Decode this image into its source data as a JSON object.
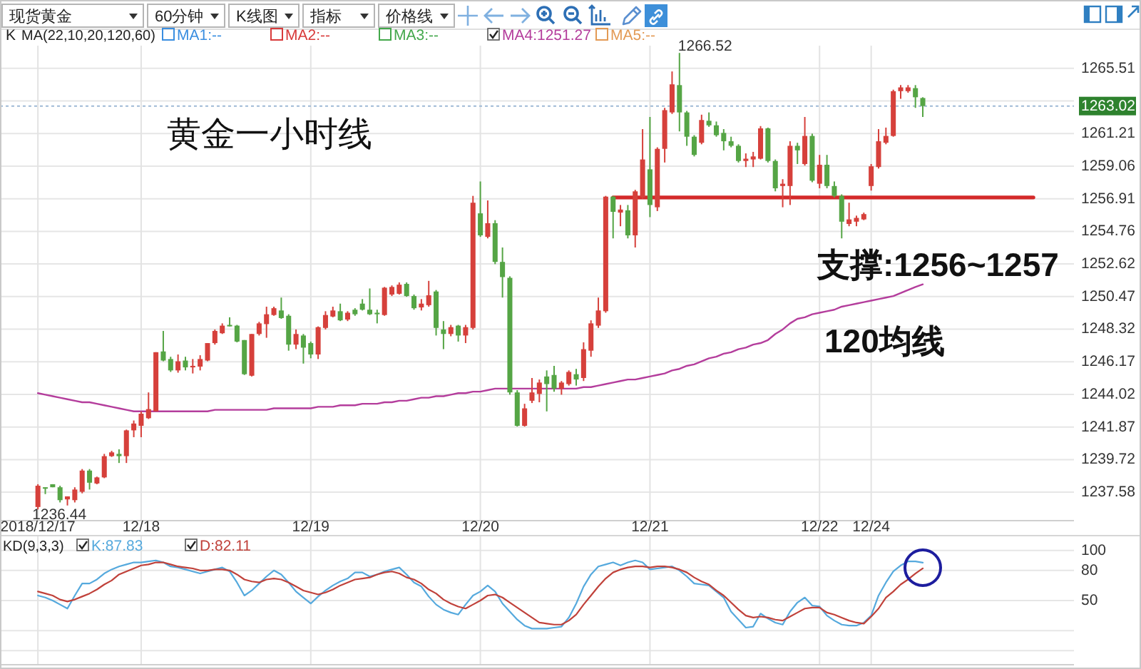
{
  "chart_data": [
    {
      "type": "candlestick",
      "title": "黄金一小时线",
      "categories": [
        "2018/12/17",
        null,
        null,
        null,
        null,
        null,
        null,
        null,
        null,
        null,
        null,
        null,
        null,
        null,
        "12/18",
        null,
        null,
        null,
        null,
        null,
        null,
        null,
        null,
        null,
        null,
        null,
        null,
        null,
        null,
        null,
        null,
        null,
        null,
        null,
        null,
        null,
        null,
        "12/19",
        null,
        null,
        null,
        null,
        null,
        null,
        null,
        null,
        null,
        null,
        null,
        null,
        null,
        null,
        null,
        null,
        null,
        null,
        null,
        null,
        null,
        null,
        "12/20",
        null,
        null,
        null,
        null,
        null,
        null,
        null,
        null,
        null,
        null,
        null,
        null,
        null,
        null,
        null,
        null,
        null,
        null,
        null,
        null,
        null,
        null,
        "12/21",
        null,
        null,
        null,
        null,
        null,
        null,
        null,
        null,
        null,
        null,
        null,
        null,
        null,
        null,
        null,
        null,
        null,
        null,
        null,
        null,
        null,
        null,
        "12/22",
        null,
        null,
        null,
        null,
        null,
        null,
        "12/24",
        null,
        null,
        null,
        null,
        null,
        null,
        null,
        null,
        null,
        null,
        null,
        null,
        null,
        null,
        null,
        null,
        null,
        null,
        null,
        null,
        null,
        null,
        null,
        null,
        null,
        null,
        null
      ],
      "ohlc": [
        [
          1236.6,
          1238.1,
          1236.44,
          1238.0
        ],
        [
          1237.9,
          1237.9,
          1237.45,
          1237.85
        ],
        [
          1238.1,
          1238.1,
          1237.9,
          1237.9
        ],
        [
          1237.9,
          1238.0,
          1236.9,
          1237.05
        ],
        [
          1237.1,
          1237.3,
          1236.7,
          1237.3
        ],
        [
          1237.05,
          1237.9,
          1236.9,
          1237.75
        ],
        [
          1237.6,
          1239.1,
          1237.5,
          1239.0
        ],
        [
          1239.0,
          1239.1,
          1237.75,
          1238.2
        ],
        [
          1238.15,
          1238.6,
          1238.1,
          1238.55
        ],
        [
          1238.55,
          1240.1,
          1238.5,
          1239.95
        ],
        [
          1239.95,
          1240.3,
          1239.9,
          1240.2
        ],
        [
          1240.1,
          1240.4,
          1239.5,
          1239.95
        ],
        [
          1239.95,
          1241.7,
          1239.5,
          1241.65
        ],
        [
          1241.65,
          1242.3,
          1241.2,
          1242.1
        ],
        [
          1241.95,
          1242.9,
          1241.2,
          1242.75
        ],
        [
          1242.45,
          1244.15,
          1242.4,
          1243.05
        ],
        [
          1242.9,
          1246.8,
          1242.9,
          1246.8
        ],
        [
          1246.85,
          1248.2,
          1246.2,
          1246.25
        ],
        [
          1246.35,
          1246.5,
          1245.5,
          1245.6
        ],
        [
          1245.6,
          1246.65,
          1245.45,
          1246.2
        ],
        [
          1246.25,
          1246.5,
          1245.6,
          1245.8
        ],
        [
          1245.8,
          1246.35,
          1245.4,
          1245.9
        ],
        [
          1245.85,
          1246.6,
          1245.6,
          1246.35
        ],
        [
          1246.25,
          1247.4,
          1246.2,
          1247.4
        ],
        [
          1247.4,
          1248.3,
          1247.3,
          1248.2
        ],
        [
          1248.05,
          1248.7,
          1248.0,
          1248.55
        ],
        [
          1248.6,
          1249.1,
          1248.5,
          1248.5
        ],
        [
          1248.55,
          1248.6,
          1247.45,
          1247.5
        ],
        [
          1247.6,
          1247.6,
          1245.3,
          1245.35
        ],
        [
          1245.25,
          1248.0,
          1245.2,
          1248.0
        ],
        [
          1248.0,
          1248.8,
          1247.9,
          1248.7
        ],
        [
          1248.65,
          1249.8,
          1247.75,
          1249.3
        ],
        [
          1249.25,
          1249.8,
          1249.2,
          1249.7
        ],
        [
          1249.55,
          1250.4,
          1249.0,
          1249.05
        ],
        [
          1249.2,
          1249.3,
          1246.9,
          1247.3
        ],
        [
          1247.3,
          1248.3,
          1247.0,
          1248.0
        ],
        [
          1247.9,
          1248.0,
          1246.05,
          1247.1
        ],
        [
          1247.4,
          1247.5,
          1246.4,
          1246.65
        ],
        [
          1246.65,
          1248.5,
          1246.35,
          1248.45
        ],
        [
          1248.4,
          1249.5,
          1248.3,
          1249.25
        ],
        [
          1249.15,
          1249.8,
          1249.1,
          1249.55
        ],
        [
          1249.5,
          1250.0,
          1248.85,
          1248.9
        ],
        [
          1248.95,
          1249.5,
          1248.85,
          1249.4
        ],
        [
          1249.6,
          1249.7,
          1249.2,
          1249.3
        ],
        [
          1250.0,
          1250.3,
          1249.55,
          1249.6
        ],
        [
          1249.6,
          1251.0,
          1249.25,
          1249.3
        ],
        [
          1249.4,
          1249.6,
          1248.7,
          1249.3
        ],
        [
          1249.25,
          1251.1,
          1249.2,
          1251.05
        ],
        [
          1250.6,
          1251.2,
          1250.5,
          1251.1
        ],
        [
          1250.65,
          1251.4,
          1250.6,
          1251.25
        ],
        [
          1251.3,
          1251.4,
          1250.45,
          1250.5
        ],
        [
          1250.5,
          1250.6,
          1249.6,
          1249.7
        ],
        [
          1249.75,
          1250.3,
          1249.55,
          1250.0
        ],
        [
          1249.9,
          1251.5,
          1249.8,
          1250.55
        ],
        [
          1250.8,
          1250.9,
          1247.9,
          1248.4
        ],
        [
          1248.3,
          1248.85,
          1247.0,
          1248.0
        ],
        [
          1248.0,
          1248.6,
          1247.85,
          1248.45
        ],
        [
          1248.55,
          1248.6,
          1247.5,
          1247.9
        ],
        [
          1247.9,
          1248.6,
          1247.4,
          1248.45
        ],
        [
          1248.4,
          1257.1,
          1248.3,
          1256.65
        ],
        [
          1255.95,
          1258.05,
          1254.4,
          1254.5
        ],
        [
          1254.4,
          1256.8,
          1254.3,
          1255.3
        ],
        [
          1255.3,
          1255.5,
          1252.6,
          1252.75
        ],
        [
          1252.75,
          1253.7,
          1250.4,
          1251.75
        ],
        [
          1251.7,
          1251.8,
          1244.0,
          1244.15
        ],
        [
          1244.15,
          1244.3,
          1241.9,
          1241.95
        ],
        [
          1241.95,
          1243.4,
          1241.9,
          1243.1
        ],
        [
          1243.6,
          1245.1,
          1243.45,
          1244.15
        ],
        [
          1244.05,
          1245.0,
          1243.5,
          1244.8
        ],
        [
          1245.2,
          1245.6,
          1242.9,
          1244.7
        ],
        [
          1245.3,
          1245.9,
          1244.2,
          1244.4
        ],
        [
          1244.4,
          1244.9,
          1244.0,
          1244.8
        ],
        [
          1244.7,
          1245.6,
          1244.6,
          1245.5
        ],
        [
          1245.35,
          1245.7,
          1244.6,
          1245.0
        ],
        [
          1245.1,
          1247.45,
          1244.9,
          1247.0
        ],
        [
          1246.9,
          1248.9,
          1246.5,
          1248.7
        ],
        [
          1248.55,
          1250.4,
          1248.4,
          1249.55
        ],
        [
          1249.5,
          1257.1,
          1249.4,
          1257.05
        ],
        [
          1257.05,
          1257.1,
          1254.3,
          1256.05
        ],
        [
          1256.0,
          1256.5,
          1255.1,
          1256.2
        ],
        [
          1256.15,
          1256.5,
          1254.3,
          1254.5
        ],
        [
          1254.5,
          1257.5,
          1253.7,
          1257.4
        ],
        [
          1257.0,
          1261.5,
          1256.9,
          1259.5
        ],
        [
          1258.85,
          1262.3,
          1255.7,
          1256.5
        ],
        [
          1256.35,
          1260.3,
          1256.1,
          1260.2
        ],
        [
          1260.2,
          1262.9,
          1259.3,
          1262.75
        ],
        [
          1262.6,
          1265.3,
          1262.5,
          1264.45
        ],
        [
          1264.4,
          1266.52,
          1261.35,
          1262.6
        ],
        [
          1262.6,
          1262.7,
          1260.4,
          1261.0
        ],
        [
          1261.0,
          1261.1,
          1259.7,
          1259.8
        ],
        [
          1260.6,
          1262.45,
          1260.5,
          1262.1
        ],
        [
          1262.05,
          1262.6,
          1261.65,
          1261.75
        ],
        [
          1261.75,
          1262.0,
          1261.0,
          1261.1
        ],
        [
          1261.25,
          1261.5,
          1260.1,
          1260.7
        ],
        [
          1260.7,
          1261.0,
          1260.3,
          1260.4
        ],
        [
          1260.4,
          1260.5,
          1259.3,
          1259.4
        ],
        [
          1259.4,
          1259.9,
          1259.0,
          1259.55
        ],
        [
          1259.5,
          1260.0,
          1259.0,
          1259.7
        ],
        [
          1259.55,
          1261.7,
          1259.5,
          1261.55
        ],
        [
          1261.55,
          1261.6,
          1259.3,
          1259.4
        ],
        [
          1259.4,
          1259.5,
          1257.4,
          1257.6
        ],
        [
          1257.75,
          1258.2,
          1256.35,
          1257.9
        ],
        [
          1257.75,
          1260.7,
          1256.5,
          1260.4
        ],
        [
          1260.4,
          1260.6,
          1259.2,
          1260.1
        ],
        [
          1259.2,
          1262.3,
          1259.1,
          1261.05
        ],
        [
          1261.05,
          1261.2,
          1258.0,
          1258.1
        ],
        [
          1257.9,
          1259.8,
          1257.6,
          1259.15
        ],
        [
          1259.15,
          1259.8,
          1257.6,
          1257.75
        ],
        [
          1257.75,
          1258.05,
          1257.0,
          1257.1
        ],
        [
          1257.1,
          1257.2,
          1254.3,
          1255.4
        ],
        [
          1255.25,
          1256.65,
          1255.1,
          1255.55
        ],
        [
          1255.4,
          1255.8,
          1255.1,
          1255.65
        ],
        [
          1255.55,
          1256.0,
          1255.5,
          1255.9
        ],
        [
          1257.75,
          1259.2,
          1257.45,
          1259.05
        ],
        [
          1259.0,
          1261.5,
          1258.9,
          1260.7
        ],
        [
          1260.6,
          1261.6,
          1260.5,
          1261.05
        ],
        [
          1261.05,
          1264.1,
          1261.0,
          1264.0
        ],
        [
          1264.0,
          1264.4,
          1263.5,
          1264.25
        ],
        [
          1264.0,
          1264.4,
          1263.9,
          1264.25
        ],
        [
          1264.2,
          1264.4,
          1262.9,
          1263.6
        ],
        [
          1263.55,
          1263.6,
          1262.3,
          1263.02
        ],
        null,
        null,
        null,
        null,
        null,
        null,
        null,
        null,
        null,
        null,
        null,
        null,
        null,
        null,
        null,
        null,
        null,
        null,
        null,
        null
      ],
      "series": [
        {
          "name": "MA1:--",
          "type": "line",
          "color": "#3a8ee0",
          "values": [
            null,
            null,
            null,
            null,
            null,
            null,
            null,
            null,
            null,
            null,
            null,
            null,
            null,
            null,
            null,
            null,
            null,
            null,
            null,
            null,
            null,
            null,
            null,
            null,
            null,
            null,
            null,
            null,
            null,
            null,
            null,
            null,
            null,
            null,
            null,
            null,
            null,
            null,
            null,
            null,
            null,
            null,
            null,
            null,
            null,
            null,
            null,
            null,
            null,
            null,
            null,
            null,
            null,
            null,
            null,
            null,
            null,
            null,
            null,
            null,
            null,
            null,
            null,
            null,
            null,
            null,
            null,
            null,
            null,
            null,
            null,
            null,
            null,
            null,
            null,
            null,
            null,
            null,
            null,
            null,
            null,
            null,
            null,
            null,
            null,
            null,
            null,
            null,
            null,
            null,
            null,
            null,
            null,
            null,
            null,
            null,
            null,
            null,
            null,
            null,
            null,
            null,
            null,
            null,
            null,
            null,
            null,
            null,
            null,
            null,
            null,
            null,
            null,
            null,
            null,
            null,
            null,
            null,
            null,
            null,
            null,
            null,
            null,
            null,
            null,
            null,
            null,
            null,
            null,
            null,
            null,
            null,
            null,
            null,
            null,
            null,
            null,
            null,
            null,
            null,
            null
          ]
        },
        {
          "name": "MA2:--",
          "type": "line",
          "color": "#d83a3a",
          "values": [
            null,
            null,
            null,
            null,
            null,
            null,
            null,
            null,
            null,
            null,
            null,
            null,
            null,
            null,
            null,
            null,
            null,
            null,
            null,
            null,
            null,
            null,
            null,
            null,
            null,
            null,
            null,
            null,
            null,
            null,
            null,
            null,
            null,
            null,
            null,
            null,
            null,
            null,
            null,
            null,
            null,
            null,
            null,
            null,
            null,
            null,
            null,
            null,
            null,
            null,
            null,
            null,
            null,
            null,
            null,
            null,
            null,
            null,
            null,
            null,
            null,
            null,
            null,
            null,
            null,
            null,
            null,
            null,
            null,
            null,
            null,
            null,
            null,
            null,
            null,
            null,
            null,
            null,
            null,
            null,
            null,
            null,
            null,
            null,
            null,
            null,
            null,
            null,
            null,
            null,
            null,
            null,
            null,
            null,
            null,
            null,
            null,
            null,
            null,
            null,
            null,
            null,
            null,
            null,
            null,
            null,
            null,
            null,
            null,
            null,
            null,
            null,
            null,
            null,
            null,
            null,
            null,
            null,
            null,
            null,
            null,
            null,
            null,
            null,
            null,
            null,
            null,
            null,
            null,
            null,
            null,
            null,
            null,
            null,
            null,
            null,
            null,
            null,
            null,
            null,
            null
          ]
        },
        {
          "name": "MA3:--",
          "type": "line",
          "color": "#43a84b",
          "values": [
            null,
            null,
            null,
            null,
            null,
            null,
            null,
            null,
            null,
            null,
            null,
            null,
            null,
            null,
            null,
            null,
            null,
            null,
            null,
            null,
            null,
            null,
            null,
            null,
            null,
            null,
            null,
            null,
            null,
            null,
            null,
            null,
            null,
            null,
            null,
            null,
            null,
            null,
            null,
            null,
            null,
            null,
            null,
            null,
            null,
            null,
            null,
            null,
            null,
            null,
            null,
            null,
            null,
            null,
            null,
            null,
            null,
            null,
            null,
            null,
            null,
            null,
            null,
            null,
            null,
            null,
            null,
            null,
            null,
            null,
            null,
            null,
            null,
            null,
            null,
            null,
            null,
            null,
            null,
            null,
            null,
            null,
            null,
            null,
            null,
            null,
            null,
            null,
            null,
            null,
            null,
            null,
            null,
            null,
            null,
            null,
            null,
            null,
            null,
            null,
            null,
            null,
            null,
            null,
            null,
            null,
            null,
            null,
            null,
            null,
            null,
            null,
            null,
            null,
            null,
            null,
            null,
            null,
            null,
            null,
            null,
            null,
            null,
            null,
            null,
            null,
            null,
            null,
            null,
            null,
            null,
            null,
            null,
            null,
            null,
            null,
            null,
            null,
            null,
            null,
            null
          ]
        },
        {
          "name": "MA4:1251.27",
          "type": "line",
          "color": "#b43d9c",
          "values": [
            1244.1,
            1244.0,
            1243.9,
            1243.8,
            1243.7,
            1243.6,
            1243.5,
            1243.5,
            1243.4,
            1243.3,
            1243.2,
            1243.1,
            1243.0,
            1242.9,
            1242.9,
            1242.9,
            1242.9,
            1242.9,
            1242.9,
            1242.9,
            1242.9,
            1242.9,
            1242.9,
            1242.9,
            1243.0,
            1243.0,
            1243.0,
            1243.0,
            1243.0,
            1243.0,
            1243.0,
            1243.0,
            1243.1,
            1243.1,
            1243.1,
            1243.1,
            1243.1,
            1243.1,
            1243.2,
            1243.2,
            1243.2,
            1243.3,
            1243.3,
            1243.3,
            1243.4,
            1243.4,
            1243.4,
            1243.5,
            1243.5,
            1243.6,
            1243.6,
            1243.7,
            1243.8,
            1243.8,
            1243.9,
            1243.9,
            1244.0,
            1244.1,
            1244.1,
            1244.2,
            1244.2,
            1244.3,
            1244.4,
            1244.4,
            1244.4,
            1244.4,
            1244.4,
            1244.4,
            1244.4,
            1244.4,
            1244.4,
            1244.4,
            1244.4,
            1244.4,
            1244.5,
            1244.5,
            1244.6,
            1244.7,
            1244.8,
            1244.9,
            1245.0,
            1245.0,
            1245.1,
            1245.2,
            1245.3,
            1245.4,
            1245.6,
            1245.7,
            1245.9,
            1246.0,
            1246.2,
            1246.4,
            1246.5,
            1246.7,
            1246.8,
            1247.0,
            1247.1,
            1247.3,
            1247.4,
            1247.6,
            1248.0,
            1248.3,
            1248.7,
            1249.0,
            1249.1,
            1249.3,
            1249.4,
            1249.5,
            1249.6,
            1249.8,
            1249.9,
            1250.0,
            1250.1,
            1250.2,
            1250.3,
            1250.4,
            1250.5,
            1250.7,
            1250.9,
            1251.1,
            1251.27,
            null,
            null,
            null,
            null,
            null,
            null,
            null,
            null,
            null,
            null,
            null,
            null,
            null,
            null,
            null,
            null,
            null,
            null,
            null,
            null
          ]
        },
        {
          "name": "MA5:--",
          "type": "line",
          "color": "#e39a55",
          "values": [
            null,
            null,
            null,
            null,
            null,
            null,
            null,
            null,
            null,
            null,
            null,
            null,
            null,
            null,
            null,
            null,
            null,
            null,
            null,
            null,
            null,
            null,
            null,
            null,
            null,
            null,
            null,
            null,
            null,
            null,
            null,
            null,
            null,
            null,
            null,
            null,
            null,
            null,
            null,
            null,
            null,
            null,
            null,
            null,
            null,
            null,
            null,
            null,
            null,
            null,
            null,
            null,
            null,
            null,
            null,
            null,
            null,
            null,
            null,
            null,
            null,
            null,
            null,
            null,
            null,
            null,
            null,
            null,
            null,
            null,
            null,
            null,
            null,
            null,
            null,
            null,
            null,
            null,
            null,
            null,
            null,
            null,
            null,
            null,
            null,
            null,
            null,
            null,
            null,
            null,
            null,
            null,
            null,
            null,
            null,
            null,
            null,
            null,
            null,
            null,
            null,
            null,
            null,
            null,
            null,
            null,
            null,
            null,
            null,
            null,
            null,
            null,
            null,
            null,
            null,
            null,
            null,
            null,
            null,
            null,
            null,
            null,
            null,
            null,
            null,
            null,
            null,
            null,
            null,
            null,
            null,
            null,
            null,
            null,
            null,
            null,
            null,
            null,
            null,
            null,
            null
          ]
        },
        {
          "type": "line",
          "color": "#d42a2a",
          "values": [
            null,
            null,
            null,
            null,
            null,
            null,
            null,
            null,
            null,
            null,
            null,
            null,
            null,
            null,
            null,
            null,
            null,
            null,
            null,
            null,
            null,
            null,
            null,
            null,
            null,
            null,
            null,
            null,
            null,
            null,
            null,
            null,
            null,
            null,
            null,
            null,
            null,
            null,
            null,
            null,
            null,
            null,
            null,
            null,
            null,
            null,
            null,
            null,
            null,
            null,
            null,
            null,
            null,
            null,
            null,
            null,
            null,
            null,
            null,
            null,
            null,
            null,
            null,
            null,
            null,
            null,
            null,
            null,
            null,
            null,
            null,
            null,
            null,
            null,
            null,
            null,
            null,
            null,
            1257,
            1257,
            1257,
            1257,
            1257,
            1257,
            1257,
            1257,
            1257,
            1257,
            1257,
            1257,
            1257,
            1257,
            1257,
            1257,
            1257,
            1257,
            1257,
            1257,
            1257,
            1257,
            1257,
            1257,
            1257,
            1257,
            1257,
            1257,
            1257,
            1257,
            1257,
            1257,
            1257,
            1257,
            1257,
            1257,
            1257,
            1257,
            1257,
            1257,
            1257,
            1257,
            1257,
            1257,
            1257,
            1257,
            1257,
            1257,
            1257,
            1257,
            1257,
            1257,
            1257,
            1257,
            1257,
            1257,
            1257,
            1257,
            null,
            null,
            null,
            null,
            null
          ]
        }
      ],
      "ylim": [
        1235.7,
        1267.0
      ],
      "yticks": [
        1237.58,
        1239.72,
        1241.87,
        1244.02,
        1246.17,
        1248.32,
        1250.47,
        1252.62,
        1254.76,
        1256.91,
        1259.06,
        1261.21,
        {
          "value": 1263.36,
          "label": null
        },
        1265.51
      ],
      "grid": true,
      "legend": "top left",
      "legend_title": "MA(22,10,20,120,60)",
      "ref_lines": [
        {
          "axis": "y",
          "value": 1263.02,
          "label": "1263.02",
          "color": "#9fbad6",
          "line_style": "dotted"
        }
      ],
      "annotations": [
        "现货黄金",
        "60分钟",
        "K线图",
        "指标",
        "价格线",
        "K",
        "120均线",
        {
          "text": "支撑:1256~1257",
          "y": 1257
        },
        "1266.52",
        "1236.44"
      ]
    },
    {
      "type": "line",
      "categories": [
        null,
        null,
        null,
        null,
        null,
        null,
        null,
        null,
        null,
        null,
        null,
        null,
        null,
        null,
        null,
        null,
        null,
        null,
        null,
        null,
        null,
        null,
        null,
        null,
        null,
        null,
        null,
        null,
        null,
        null,
        null,
        null,
        null,
        null,
        null,
        null,
        null,
        null,
        null,
        null,
        null,
        null,
        null,
        null,
        null,
        null,
        null,
        null,
        null,
        null,
        null,
        null,
        null,
        null,
        null,
        null,
        null,
        null,
        null,
        null,
        null,
        null,
        null,
        null,
        null,
        null,
        null,
        null,
        null,
        null,
        null,
        null,
        null,
        null,
        null,
        null,
        null,
        null,
        null,
        null,
        null,
        null,
        null,
        null,
        null,
        null,
        null,
        null,
        null,
        null,
        null,
        null,
        null,
        null,
        null,
        null,
        null,
        null,
        null,
        null,
        null,
        null,
        null,
        null,
        null,
        null,
        null,
        null,
        null,
        null,
        null,
        null,
        null,
        null,
        null,
        null,
        null,
        null,
        null,
        null,
        null,
        null,
        null,
        null,
        null,
        null,
        null,
        null,
        null,
        null,
        null,
        null,
        null,
        null,
        null,
        null,
        null,
        null,
        null,
        null,
        null
      ],
      "series": [
        {
          "name": "K:87.83",
          "color": "#55a9dd",
          "values": [
            55,
            53,
            50,
            46,
            42,
            55,
            67,
            67,
            71,
            77,
            81,
            84,
            86,
            88,
            88,
            89,
            90,
            88,
            84,
            83,
            81,
            79,
            77,
            79,
            81,
            83,
            79,
            68,
            55,
            60,
            67,
            74,
            80,
            76,
            68,
            59,
            53,
            47,
            54,
            60,
            65,
            69,
            72,
            78,
            78,
            74,
            76,
            79,
            81,
            83,
            76,
            68,
            64,
            54,
            46,
            41,
            38,
            36,
            46,
            55,
            59,
            65,
            59,
            47,
            39,
            31,
            25,
            22,
            22,
            22,
            23,
            24,
            33,
            47,
            64,
            76,
            84,
            86,
            88,
            85,
            88,
            90,
            88,
            81,
            82,
            83,
            84,
            80,
            74,
            67,
            66,
            65,
            59,
            53,
            39,
            31,
            23,
            24,
            37,
            32,
            28,
            26,
            39,
            48,
            53,
            45,
            44,
            35,
            30,
            26,
            25,
            25,
            28,
            35,
            55,
            68,
            79,
            85,
            89,
            89,
            87.83,
            null,
            null,
            null,
            null,
            null,
            null,
            null,
            null,
            null,
            null,
            null,
            null,
            null,
            null,
            null,
            null,
            null,
            null,
            null,
            null
          ]
        },
        {
          "name": "D:82.11",
          "color": "#c0413a",
          "values": [
            59,
            57,
            55,
            51,
            49,
            51,
            54,
            57,
            61,
            66,
            70,
            76,
            79,
            82,
            85,
            86,
            88,
            88,
            86,
            84,
            83,
            82,
            80,
            80,
            81,
            81,
            80,
            76,
            71,
            69,
            68,
            71,
            72,
            71,
            68,
            64,
            60,
            58,
            56,
            58,
            61,
            65,
            68,
            71,
            72,
            73,
            76,
            78,
            79,
            77,
            73,
            71,
            67,
            61,
            57,
            51,
            47,
            44,
            42,
            46,
            50,
            55,
            56,
            53,
            48,
            43,
            38,
            33,
            28,
            27,
            26,
            26,
            30,
            36,
            46,
            55,
            64,
            72,
            78,
            81,
            83,
            84,
            84,
            83,
            84,
            84,
            83,
            81,
            78,
            73,
            69,
            66,
            60,
            55,
            48,
            41,
            35,
            33,
            34,
            33,
            31,
            30,
            34,
            38,
            42,
            43,
            43,
            38,
            36,
            33,
            30,
            28,
            27,
            34,
            42,
            53,
            59,
            66,
            71,
            77,
            82.11,
            null,
            null,
            null,
            null,
            null,
            null,
            null,
            null,
            null,
            null,
            null,
            null,
            null,
            null,
            null,
            null,
            null,
            null,
            null,
            null
          ]
        }
      ],
      "ylim": [
        -14,
        114
      ],
      "yticks": [
        {
          "value": 0,
          "label": null
        },
        {
          "value": 20,
          "label": null
        },
        50,
        80,
        100
      ],
      "tick_labels": "y",
      "grid": true,
      "legend": "top left",
      "legend_title": "KD(9,3,3)"
    }
  ]
}
